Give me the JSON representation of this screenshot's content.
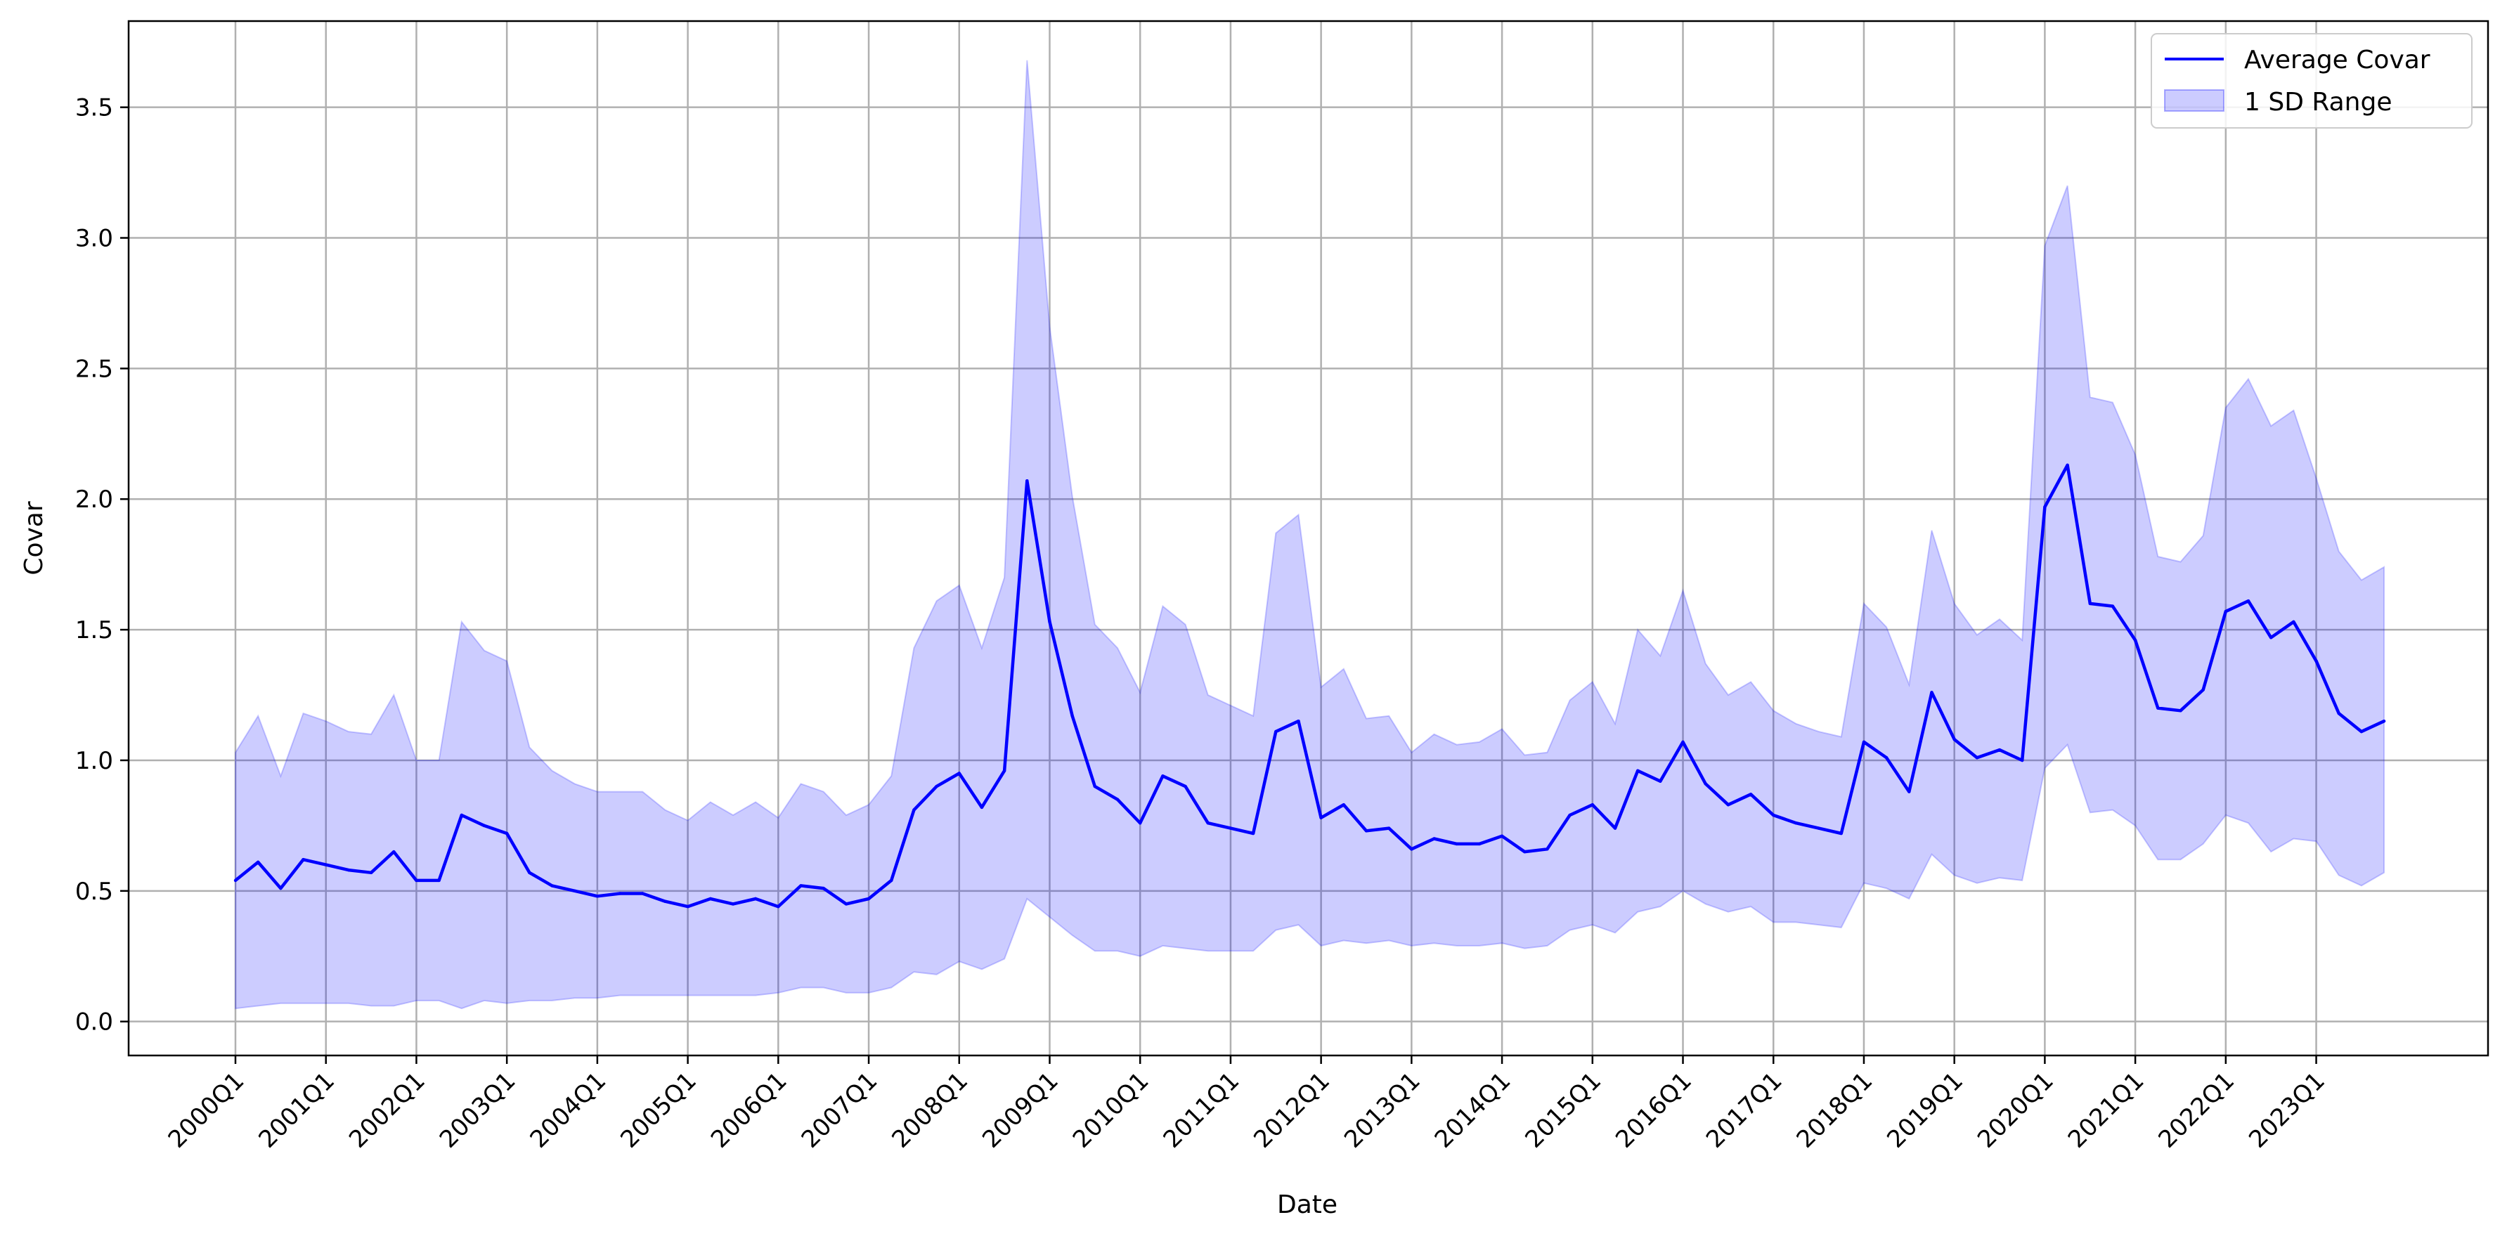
{
  "chart_data": {
    "type": "line",
    "title": "",
    "xlabel": "Date",
    "ylabel": "Covar",
    "ylim": [
      -0.13,
      3.83
    ],
    "yticks": [
      0.0,
      0.5,
      1.0,
      1.5,
      2.0,
      2.5,
      3.0,
      3.5
    ],
    "ytick_labels": [
      "0.0",
      "0.5",
      "1.0",
      "1.5",
      "2.0",
      "2.5",
      "3.0",
      "3.5"
    ],
    "xtick_labels": [
      "2000Q1",
      "2001Q1",
      "2002Q1",
      "2003Q1",
      "2004Q1",
      "2005Q1",
      "2006Q1",
      "2007Q1",
      "2008Q1",
      "2009Q1",
      "2010Q1",
      "2011Q1",
      "2012Q1",
      "2013Q1",
      "2014Q1",
      "2015Q1",
      "2016Q1",
      "2017Q1",
      "2018Q1",
      "2019Q1",
      "2020Q1",
      "2021Q1",
      "2022Q1",
      "2023Q1"
    ],
    "grid": true,
    "legend_position": "top-right",
    "x": [
      "2000Q1",
      "2000Q2",
      "2000Q3",
      "2000Q4",
      "2001Q1",
      "2001Q2",
      "2001Q3",
      "2001Q4",
      "2002Q1",
      "2002Q2",
      "2002Q3",
      "2002Q4",
      "2003Q1",
      "2003Q2",
      "2003Q3",
      "2003Q4",
      "2004Q1",
      "2004Q2",
      "2004Q3",
      "2004Q4",
      "2005Q1",
      "2005Q2",
      "2005Q3",
      "2005Q4",
      "2006Q1",
      "2006Q2",
      "2006Q3",
      "2006Q4",
      "2007Q1",
      "2007Q2",
      "2007Q3",
      "2007Q4",
      "2008Q1",
      "2008Q2",
      "2008Q3",
      "2008Q4",
      "2009Q1",
      "2009Q2",
      "2009Q3",
      "2009Q4",
      "2010Q1",
      "2010Q2",
      "2010Q3",
      "2010Q4",
      "2011Q1",
      "2011Q2",
      "2011Q3",
      "2011Q4",
      "2012Q1",
      "2012Q2",
      "2012Q3",
      "2012Q4",
      "2013Q1",
      "2013Q2",
      "2013Q3",
      "2013Q4",
      "2014Q1",
      "2014Q2",
      "2014Q3",
      "2014Q4",
      "2015Q1",
      "2015Q2",
      "2015Q3",
      "2015Q4",
      "2016Q1",
      "2016Q2",
      "2016Q3",
      "2016Q4",
      "2017Q1",
      "2017Q2",
      "2017Q3",
      "2017Q4",
      "2018Q1",
      "2018Q2",
      "2018Q3",
      "2018Q4",
      "2019Q1",
      "2019Q2",
      "2019Q3",
      "2019Q4",
      "2020Q1",
      "2020Q2",
      "2020Q3",
      "2020Q4",
      "2021Q1",
      "2021Q2",
      "2021Q3",
      "2021Q4",
      "2022Q1",
      "2022Q2",
      "2022Q3",
      "2022Q4",
      "2023Q1",
      "2023Q2",
      "2023Q3",
      "2023Q4"
    ],
    "series": [
      {
        "name": "Average Covar",
        "type": "line",
        "color": "#0000ff",
        "values": [
          0.54,
          0.61,
          0.51,
          0.62,
          0.6,
          0.58,
          0.57,
          0.65,
          0.54,
          0.54,
          0.79,
          0.75,
          0.72,
          0.57,
          0.52,
          0.5,
          0.48,
          0.49,
          0.49,
          0.46,
          0.44,
          0.47,
          0.45,
          0.47,
          0.44,
          0.52,
          0.51,
          0.45,
          0.47,
          0.54,
          0.81,
          0.9,
          0.95,
          0.82,
          0.96,
          2.07,
          1.53,
          1.17,
          0.9,
          0.85,
          0.76,
          0.94,
          0.9,
          0.76,
          0.74,
          0.72,
          1.11,
          1.15,
          0.78,
          0.83,
          0.73,
          0.74,
          0.66,
          0.7,
          0.68,
          0.68,
          0.71,
          0.65,
          0.66,
          0.79,
          0.83,
          0.74,
          0.96,
          0.92,
          1.07,
          0.91,
          0.83,
          0.87,
          0.79,
          0.76,
          0.74,
          0.72,
          1.07,
          1.01,
          0.88,
          1.26,
          1.08,
          1.01,
          1.04,
          1.0,
          1.97,
          2.13,
          1.6,
          1.59,
          1.46,
          1.2,
          1.19,
          1.27,
          1.57,
          1.61,
          1.47,
          1.53,
          1.38,
          1.18,
          1.11,
          1.15
        ]
      },
      {
        "name": "1 SD Range",
        "type": "band",
        "color": "#0000ff",
        "opacity": 0.2,
        "upper": [
          1.03,
          1.17,
          0.94,
          1.18,
          1.15,
          1.11,
          1.1,
          1.25,
          1.0,
          1.0,
          1.53,
          1.42,
          1.38,
          1.05,
          0.96,
          0.91,
          0.88,
          0.88,
          0.88,
          0.81,
          0.77,
          0.84,
          0.79,
          0.84,
          0.78,
          0.91,
          0.88,
          0.79,
          0.83,
          0.94,
          1.43,
          1.61,
          1.67,
          1.43,
          1.7,
          3.68,
          2.66,
          2.01,
          1.52,
          1.43,
          1.26,
          1.59,
          1.52,
          1.25,
          1.21,
          1.17,
          1.87,
          1.94,
          1.28,
          1.35,
          1.16,
          1.17,
          1.03,
          1.1,
          1.06,
          1.07,
          1.12,
          1.02,
          1.03,
          1.23,
          1.3,
          1.14,
          1.5,
          1.4,
          1.65,
          1.37,
          1.25,
          1.3,
          1.19,
          1.14,
          1.11,
          1.09,
          1.6,
          1.51,
          1.29,
          1.88,
          1.6,
          1.48,
          1.54,
          1.46,
          2.97,
          3.2,
          2.39,
          2.37,
          2.17,
          1.78,
          1.76,
          1.86,
          2.35,
          2.46,
          2.28,
          2.34,
          2.08,
          1.8,
          1.69,
          1.74
        ],
        "lower": [
          0.05,
          0.06,
          0.07,
          0.07,
          0.07,
          0.07,
          0.06,
          0.06,
          0.08,
          0.08,
          0.05,
          0.08,
          0.07,
          0.08,
          0.08,
          0.09,
          0.09,
          0.1,
          0.1,
          0.1,
          0.1,
          0.1,
          0.1,
          0.1,
          0.11,
          0.13,
          0.13,
          0.11,
          0.11,
          0.13,
          0.19,
          0.18,
          0.23,
          0.2,
          0.24,
          0.47,
          0.4,
          0.33,
          0.27,
          0.27,
          0.25,
          0.29,
          0.28,
          0.27,
          0.27,
          0.27,
          0.35,
          0.37,
          0.29,
          0.31,
          0.3,
          0.31,
          0.29,
          0.3,
          0.29,
          0.29,
          0.3,
          0.28,
          0.29,
          0.35,
          0.37,
          0.34,
          0.42,
          0.44,
          0.5,
          0.45,
          0.42,
          0.44,
          0.38,
          0.38,
          0.37,
          0.36,
          0.53,
          0.51,
          0.47,
          0.64,
          0.56,
          0.53,
          0.55,
          0.54,
          0.97,
          1.06,
          0.8,
          0.81,
          0.75,
          0.62,
          0.62,
          0.68,
          0.79,
          0.76,
          0.65,
          0.7,
          0.69,
          0.56,
          0.52,
          0.57
        ]
      }
    ]
  }
}
